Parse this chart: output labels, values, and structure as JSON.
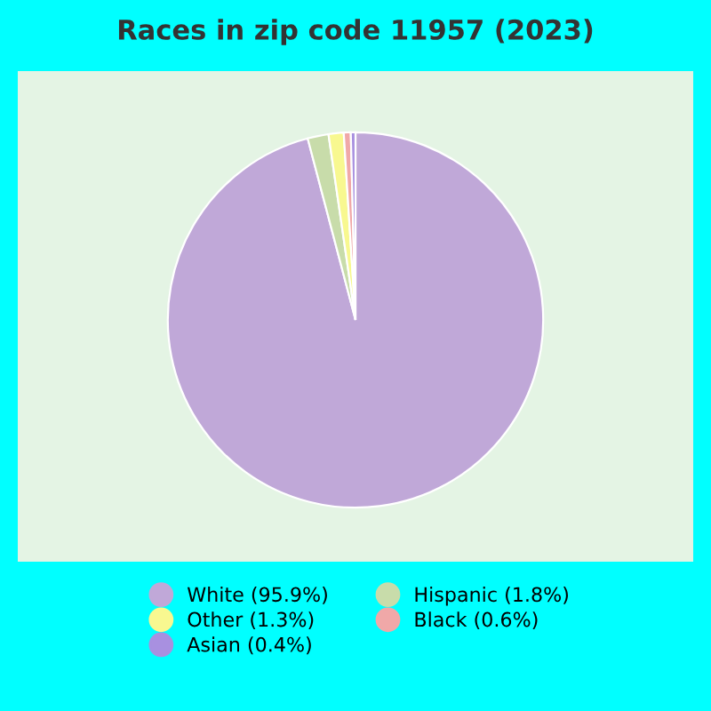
{
  "chart_data": {
    "type": "pie",
    "title": "Races in zip code 11957 (2023)",
    "categories": [
      "White (95.9%)",
      "Hispanic (1.8%)",
      "Other (1.3%)",
      "Black (0.6%)",
      "Asian (0.4%)"
    ],
    "values": [
      95.9,
      1.8,
      1.3,
      0.6,
      0.4
    ],
    "colors": [
      "#c0a8d8",
      "#c8dcaa",
      "#f8f890",
      "#f0a8a8",
      "#a890e0"
    ],
    "legend": "bottom"
  }
}
